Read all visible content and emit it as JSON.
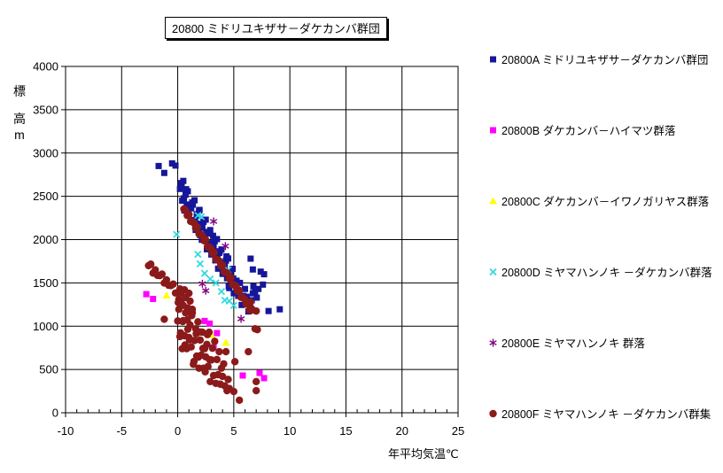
{
  "chart_data": {
    "type": "scatter",
    "title": "20800 ミドリユキザサ－ダケカンバ群団",
    "xlabel": "年平均気温℃",
    "ylabel": "標高 m",
    "ylabel_chars": [
      "標",
      "高",
      "m"
    ],
    "xlim": [
      -10,
      25
    ],
    "ylim": [
      0,
      4000
    ],
    "x_ticks": [
      -10,
      -5,
      0,
      5,
      10,
      15,
      20,
      25
    ],
    "y_ticks": [
      0,
      500,
      1000,
      1500,
      2000,
      2500,
      3000,
      3500,
      4000
    ],
    "x_minor_step": 1,
    "grid": true,
    "legend_position": "right",
    "series": [
      {
        "id": "20800A",
        "legend_label": "20800A ミドリユキザサ－ダケカンバ群団",
        "marker": "square",
        "color": "#16169a",
        "points": [
          [
            -1.7,
            2850
          ],
          [
            -1.2,
            2770
          ],
          [
            -0.5,
            2880
          ],
          [
            -0.2,
            2855
          ],
          [
            0.2,
            2585
          ],
          [
            0.3,
            2653
          ],
          [
            0.4,
            2450
          ],
          [
            0.5,
            2678
          ],
          [
            0.6,
            2336
          ],
          [
            0.7,
            2518
          ],
          [
            0.8,
            2406
          ],
          [
            0.9,
            2558
          ],
          [
            1.0,
            2276
          ],
          [
            1.1,
            2404
          ],
          [
            1.2,
            2361
          ],
          [
            1.3,
            2429
          ],
          [
            1.4,
            2226
          ],
          [
            1.5,
            2454
          ],
          [
            1.6,
            2112
          ],
          [
            1.7,
            2294
          ],
          [
            1.8,
            2182
          ],
          [
            1.9,
            2334
          ],
          [
            2.0,
            2052
          ],
          [
            2.1,
            2180
          ],
          [
            2.2,
            2137
          ],
          [
            2.3,
            2205
          ],
          [
            2.4,
            2002
          ],
          [
            2.5,
            2230
          ],
          [
            2.6,
            1888
          ],
          [
            2.7,
            2070
          ],
          [
            2.8,
            1958
          ],
          [
            2.9,
            2110
          ],
          [
            3.0,
            1828
          ],
          [
            3.1,
            1956
          ],
          [
            3.2,
            1913
          ],
          [
            3.3,
            1981
          ],
          [
            3.4,
            1778
          ],
          [
            3.5,
            2006
          ],
          [
            3.6,
            1664
          ],
          [
            3.7,
            1846
          ],
          [
            3.8,
            1734
          ],
          [
            3.9,
            1886
          ],
          [
            4.0,
            1604
          ],
          [
            4.1,
            1732
          ],
          [
            4.2,
            1689
          ],
          [
            4.3,
            1757
          ],
          [
            4.4,
            1554
          ],
          [
            4.5,
            1782
          ],
          [
            4.6,
            1440
          ],
          [
            4.7,
            1622
          ],
          [
            4.8,
            1510
          ],
          [
            4.9,
            1662
          ],
          [
            5.0,
            1380
          ],
          [
            0.35,
            2612
          ],
          [
            0.55,
            2477
          ],
          [
            0.75,
            2582
          ],
          [
            0.95,
            2297
          ],
          [
            1.15,
            2372
          ],
          [
            1.35,
            2403
          ],
          [
            1.55,
            2208
          ],
          [
            1.75,
            2273
          ],
          [
            1.95,
            2343
          ],
          [
            2.15,
            1998
          ],
          [
            2.35,
            2044
          ],
          [
            2.55,
            2089
          ],
          [
            2.75,
            2074
          ],
          [
            2.95,
            1939
          ],
          [
            3.15,
            2044
          ],
          [
            3.35,
            1760
          ],
          [
            3.55,
            1835
          ],
          [
            3.75,
            1865
          ],
          [
            3.95,
            1670
          ],
          [
            4.15,
            1735
          ],
          [
            4.35,
            1806
          ],
          [
            4.55,
            1461
          ],
          [
            4.75,
            1506
          ],
          [
            4.95,
            1551
          ],
          [
            5.1,
            1490
          ],
          [
            5.25,
            1525
          ],
          [
            5.4,
            1350
          ],
          [
            5.55,
            1500
          ],
          [
            5.7,
            1245
          ],
          [
            5.85,
            1350
          ],
          [
            6.0,
            1430
          ],
          [
            6.15,
            1340
          ],
          [
            6.3,
            1170
          ],
          [
            6.45,
            1235
          ],
          [
            6.6,
            1300
          ],
          [
            6.75,
            1460
          ],
          [
            6.9,
            1395
          ],
          [
            7.05,
            1330
          ],
          [
            7.2,
            1430
          ],
          [
            6.5,
            1780
          ],
          [
            6.7,
            1655
          ],
          [
            7.4,
            1630
          ],
          [
            7.7,
            1600
          ],
          [
            7.6,
            1480
          ],
          [
            6.7,
            1380
          ],
          [
            8.1,
            1175
          ],
          [
            9.1,
            1195
          ]
        ]
      },
      {
        "id": "20800B",
        "legend_label": "20800B ダケカンバ－ハイマツ群落",
        "marker": "square",
        "color": "#ff00ff",
        "points": [
          [
            -2.8,
            1370
          ],
          [
            -2.2,
            1315
          ],
          [
            2.4,
            1060
          ],
          [
            2.85,
            1030
          ],
          [
            3.5,
            920
          ],
          [
            3.2,
            755
          ],
          [
            5.8,
            430
          ],
          [
            7.3,
            460
          ],
          [
            7.7,
            400
          ]
        ]
      },
      {
        "id": "20800C",
        "legend_label": "20800C ダケカンバ－イワノガリヤス群落",
        "marker": "triangle",
        "color": "#ffff00",
        "points": [
          [
            -1.0,
            1355
          ],
          [
            4.3,
            810
          ],
          [
            3.0,
            900
          ]
        ]
      },
      {
        "id": "20800D",
        "legend_label": "20800D ミヤマハンノキ －ダケカンバ群落",
        "marker": "x",
        "color": "#2fd8e0",
        "points": [
          [
            -0.1,
            2060
          ],
          [
            1.8,
            2280
          ],
          [
            2.1,
            2265
          ],
          [
            1.8,
            1830
          ],
          [
            2.0,
            1720
          ],
          [
            2.4,
            1610
          ],
          [
            2.9,
            1545
          ],
          [
            3.4,
            1500
          ],
          [
            3.9,
            1400
          ],
          [
            4.2,
            1300
          ],
          [
            4.6,
            1290
          ],
          [
            5.0,
            1240
          ],
          [
            4.5,
            1650
          ]
        ]
      },
      {
        "id": "20800E",
        "legend_label": "20800E ミヤマハンノキ 群落",
        "marker": "asterisk",
        "color": "#800080",
        "points": [
          [
            3.2,
            2210
          ],
          [
            4.25,
            1925
          ],
          [
            2.2,
            1490
          ],
          [
            2.5,
            1410
          ],
          [
            5.65,
            1085
          ]
        ]
      },
      {
        "id": "20800F",
        "legend_label": "20800F ミヤマハンノキ －ダケカンバ群集",
        "marker": "circle",
        "color": "#8b1a1a",
        "points": [
          [
            0.55,
            2353
          ],
          [
            0.7,
            2339
          ],
          [
            0.85,
            2279
          ],
          [
            1.0,
            2290
          ],
          [
            1.15,
            2211
          ],
          [
            1.3,
            2207
          ],
          [
            1.45,
            2192
          ],
          [
            1.6,
            2133
          ],
          [
            1.75,
            2144
          ],
          [
            1.9,
            2065
          ],
          [
            2.05,
            2060
          ],
          [
            2.2,
            2046
          ],
          [
            2.35,
            1987
          ],
          [
            2.5,
            1998
          ],
          [
            2.65,
            1918
          ],
          [
            2.8,
            1914
          ],
          [
            2.95,
            1900
          ],
          [
            3.1,
            1841
          ],
          [
            3.25,
            1851
          ],
          [
            3.4,
            1772
          ],
          [
            3.55,
            1768
          ],
          [
            3.7,
            1754
          ],
          [
            3.85,
            1694
          ],
          [
            4.0,
            1705
          ],
          [
            4.15,
            1626
          ],
          [
            4.3,
            1622
          ],
          [
            4.45,
            1607
          ],
          [
            4.6,
            1548
          ],
          [
            4.75,
            1559
          ],
          [
            4.9,
            1480
          ],
          [
            5.05,
            1475
          ],
          [
            5.2,
            1461
          ],
          [
            5.35,
            1402
          ],
          [
            5.5,
            1413
          ],
          [
            5.65,
            1333
          ],
          [
            5.8,
            1329
          ],
          [
            5.95,
            1315
          ],
          [
            6.1,
            1256
          ],
          [
            6.25,
            1266
          ],
          [
            6.4,
            1187
          ],
          [
            6.55,
            1183
          ],
          [
            -2.6,
            1699
          ],
          [
            -2.4,
            1716
          ],
          [
            -2.2,
            1613
          ],
          [
            -2.0,
            1650
          ],
          [
            -1.8,
            1587
          ],
          [
            -1.6,
            1584
          ],
          [
            -1.4,
            1601
          ],
          [
            -1.2,
            1498
          ],
          [
            -1.0,
            1535
          ],
          [
            -0.8,
            1472
          ],
          [
            -0.6,
            1469
          ],
          [
            -0.4,
            1486
          ],
          [
            -0.2,
            1383
          ],
          [
            0.0,
            1060
          ],
          [
            0.1,
            1195
          ],
          [
            0.2,
            880
          ],
          [
            0.3,
            1275
          ],
          [
            0.4,
            740
          ],
          [
            0.5,
            1065
          ],
          [
            0.6,
            890
          ],
          [
            0.7,
            1155
          ],
          [
            0.8,
            740
          ],
          [
            0.9,
            965
          ],
          [
            1.0,
            870
          ],
          [
            1.1,
            1015
          ],
          [
            1.2,
            760
          ],
          [
            1.3,
            1155
          ],
          [
            1.4,
            560
          ],
          [
            1.5,
            835
          ],
          [
            1.6,
            970
          ],
          [
            1.7,
            655
          ],
          [
            1.8,
            1050
          ],
          [
            1.9,
            515
          ],
          [
            2.0,
            840
          ],
          [
            2.1,
            665
          ],
          [
            2.2,
            930
          ],
          [
            2.3,
            515
          ],
          [
            2.4,
            740
          ],
          [
            2.5,
            645
          ],
          [
            2.6,
            790
          ],
          [
            2.7,
            535
          ],
          [
            2.8,
            930
          ],
          [
            2.9,
            360
          ],
          [
            3.0,
            610
          ],
          [
            3.1,
            745
          ],
          [
            3.2,
            430
          ],
          [
            3.3,
            825
          ],
          [
            3.4,
            340
          ],
          [
            3.5,
            615
          ],
          [
            3.6,
            440
          ],
          [
            3.7,
            705
          ],
          [
            3.8,
            330
          ],
          [
            3.9,
            515
          ],
          [
            4.0,
            420
          ],
          [
            4.1,
            565
          ],
          [
            4.2,
            310
          ],
          [
            4.3,
            705
          ],
          [
            4.4,
            255
          ],
          [
            4.5,
            385
          ],
          [
            0.05,
            1273
          ],
          [
            0.25,
            923
          ],
          [
            0.45,
            1053
          ],
          [
            0.65,
            783
          ],
          [
            0.85,
            1073
          ],
          [
            1.05,
            843
          ],
          [
            1.25,
            1123
          ],
          [
            1.45,
            593
          ],
          [
            1.65,
            913
          ],
          [
            1.85,
            643
          ],
          [
            2.05,
            933
          ],
          [
            2.25,
            743
          ],
          [
            2.45,
            473
          ],
          [
            2.65,
            903
          ],
          [
            2.85,
            613
          ],
          [
            0.1,
            1310
          ],
          [
            0.3,
            1380
          ],
          [
            0.5,
            1240
          ],
          [
            0.7,
            1330
          ],
          [
            0.9,
            1210
          ],
          [
            1.1,
            1290
          ],
          [
            0.2,
            1430
          ],
          [
            0.6,
            1420
          ],
          [
            1.3,
            1195
          ],
          [
            1.0,
            1380
          ],
          [
            4.6,
            280
          ],
          [
            5.0,
            245
          ],
          [
            5.5,
            145
          ],
          [
            7.0,
            360
          ],
          [
            7.0,
            255
          ],
          [
            6.3,
            705
          ],
          [
            7.1,
            960
          ],
          [
            5.1,
            590
          ],
          [
            6.5,
            1280
          ],
          [
            6.6,
            1200
          ],
          [
            7.0,
            1175
          ],
          [
            6.9,
            970
          ],
          [
            -1.2,
            1080
          ]
        ]
      }
    ]
  },
  "layout": {
    "legend_row_tops": [
      58,
      138,
      218,
      298,
      378,
      458
    ]
  }
}
